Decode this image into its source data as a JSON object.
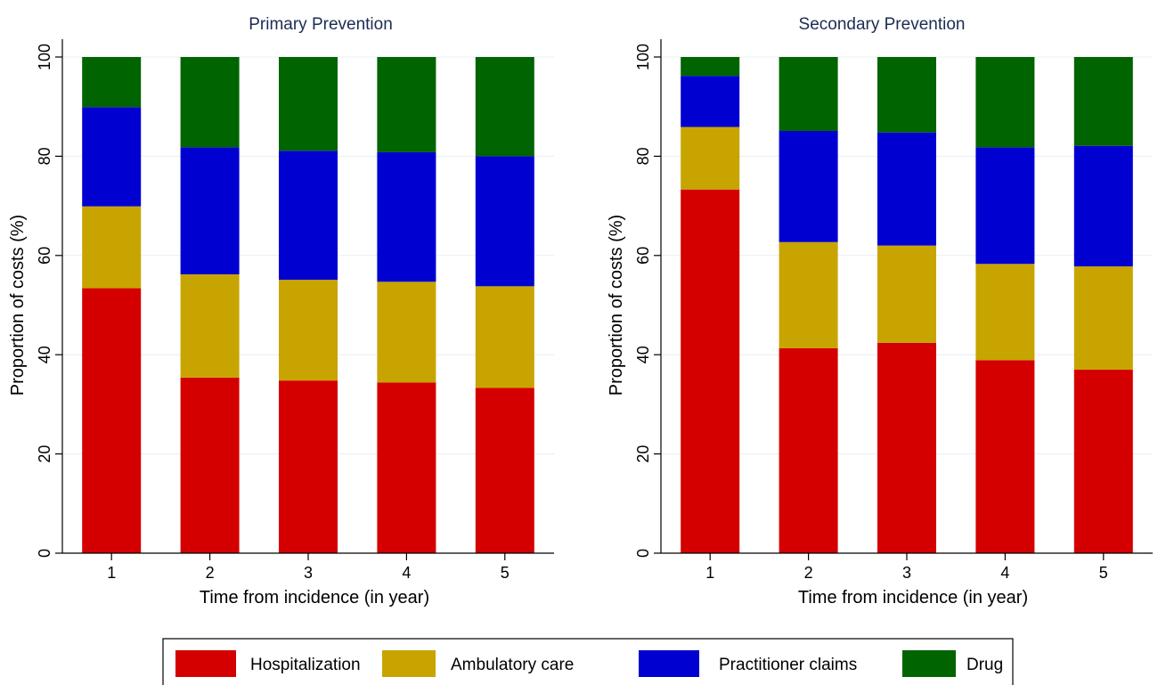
{
  "chart_data": [
    {
      "type": "bar",
      "stacked": true,
      "title": "Primary Prevention",
      "xlabel": "Time from incidence (in year)",
      "ylabel": "Proportion of costs (%)",
      "categories": [
        "1",
        "2",
        "3",
        "4",
        "5"
      ],
      "ylim": [
        0,
        100
      ],
      "yticks": [
        "0",
        "20",
        "40",
        "60",
        "80",
        "100"
      ],
      "grid": true,
      "series": [
        {
          "name": "Hospitalization",
          "color": "#d40000",
          "values": [
            53.4,
            35.4,
            34.8,
            34.4,
            33.3
          ]
        },
        {
          "name": "Ambulatory care",
          "color": "#c8a400",
          "values": [
            16.5,
            20.8,
            20.3,
            20.3,
            20.5
          ]
        },
        {
          "name": "Practitioner claims",
          "color": "#0000d0",
          "values": [
            20.0,
            25.6,
            26.0,
            26.1,
            26.2
          ]
        },
        {
          "name": "Drug",
          "color": "#006400",
          "values": [
            10.1,
            18.2,
            18.9,
            19.2,
            20.0
          ]
        }
      ]
    },
    {
      "type": "bar",
      "stacked": true,
      "title": "Secondary Prevention",
      "xlabel": "Time from incidence (in year)",
      "ylabel": "Proportion of costs (%)",
      "categories": [
        "1",
        "2",
        "3",
        "4",
        "5"
      ],
      "ylim": [
        0,
        100
      ],
      "yticks": [
        "0",
        "20",
        "40",
        "60",
        "80",
        "100"
      ],
      "grid": true,
      "series": [
        {
          "name": "Hospitalization",
          "color": "#d40000",
          "values": [
            73.3,
            41.3,
            42.4,
            38.9,
            37.0
          ]
        },
        {
          "name": "Ambulatory care",
          "color": "#c8a400",
          "values": [
            12.6,
            21.4,
            19.6,
            19.4,
            20.8
          ]
        },
        {
          "name": "Practitioner claims",
          "color": "#0000d0",
          "values": [
            10.3,
            22.4,
            22.8,
            23.5,
            24.3
          ]
        },
        {
          "name": "Drug",
          "color": "#006400",
          "values": [
            3.8,
            14.9,
            15.2,
            18.2,
            17.9
          ]
        }
      ]
    }
  ],
  "legend": {
    "placement": "bottom-center",
    "items": [
      {
        "label": "Hospitalization",
        "color": "#d40000"
      },
      {
        "label": "Ambulatory care",
        "color": "#c8a400"
      },
      {
        "label": "Practitioner claims",
        "color": "#0000d0"
      },
      {
        "label": "Drug",
        "color": "#006400"
      }
    ]
  }
}
